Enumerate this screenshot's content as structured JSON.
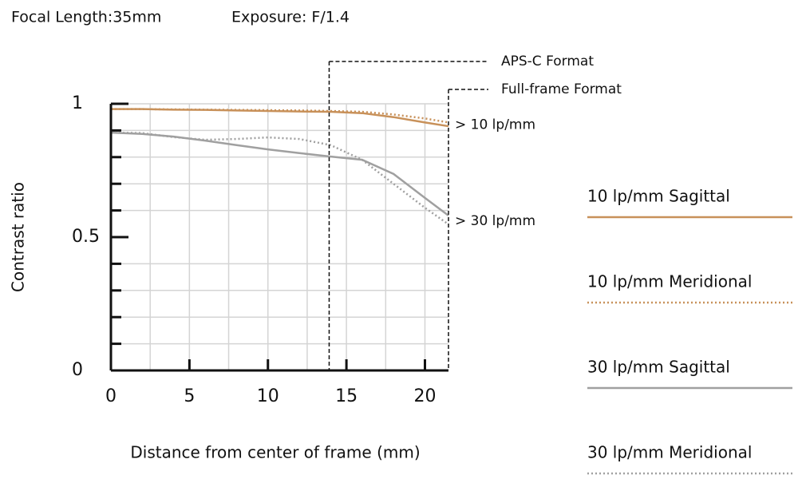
{
  "chart_data": {
    "type": "line",
    "header": [
      "Focal Length:35mm",
      "Exposure: F/1.4"
    ],
    "xlabel": "Distance from center of frame (mm)",
    "ylabel": "Contrast ratio",
    "x": [
      0,
      2,
      4,
      6,
      8,
      10,
      12,
      14,
      16,
      18,
      20,
      21.5
    ],
    "series": [
      {
        "name": "10 lp/mm Sagittal",
        "color": "#c8915a",
        "dashed": false,
        "values": [
          0.98,
          0.98,
          0.978,
          0.977,
          0.975,
          0.973,
          0.971,
          0.97,
          0.965,
          0.95,
          0.93,
          0.916
        ]
      },
      {
        "name": "10 lp/mm Meridional",
        "color": "#c8915a",
        "dashed": true,
        "values": [
          0.98,
          0.98,
          0.979,
          0.978,
          0.977,
          0.976,
          0.975,
          0.973,
          0.97,
          0.96,
          0.945,
          0.93
        ]
      },
      {
        "name": "30 lp/mm Sagittal",
        "color": "#a0a0a0",
        "dashed": false,
        "values": [
          0.892,
          0.887,
          0.877,
          0.862,
          0.845,
          0.829,
          0.815,
          0.802,
          0.79,
          0.737,
          0.647,
          0.581
        ]
      },
      {
        "name": "30 lp/mm Meridional",
        "color": "#a0a0a0",
        "dashed": true,
        "values": [
          0.892,
          0.89,
          0.875,
          0.865,
          0.868,
          0.874,
          0.868,
          0.845,
          0.79,
          0.7,
          0.61,
          0.548
        ]
      }
    ],
    "xlim": [
      0,
      21.5
    ],
    "xticks": [
      0,
      5,
      10,
      15,
      20
    ],
    "xgrid": [
      2.5,
      5,
      7.5,
      10,
      12.5,
      15,
      17.5,
      20
    ],
    "ylim": [
      0,
      1
    ],
    "yticks": [
      0,
      0.5,
      1
    ],
    "yminor": [
      0.1,
      0.2,
      0.3,
      0.4,
      0.6,
      0.7,
      0.8,
      0.9,
      1
    ],
    "format_lines": [
      {
        "label": "APS-C Format",
        "x": 13.9
      },
      {
        "label": "Full-frame Format",
        "x": 21.5
      }
    ],
    "curve_labels": [
      {
        "label": "> 10 lp/mm",
        "y": 0.92
      },
      {
        "label": "> 30 lp/mm",
        "y": 0.56
      }
    ]
  }
}
